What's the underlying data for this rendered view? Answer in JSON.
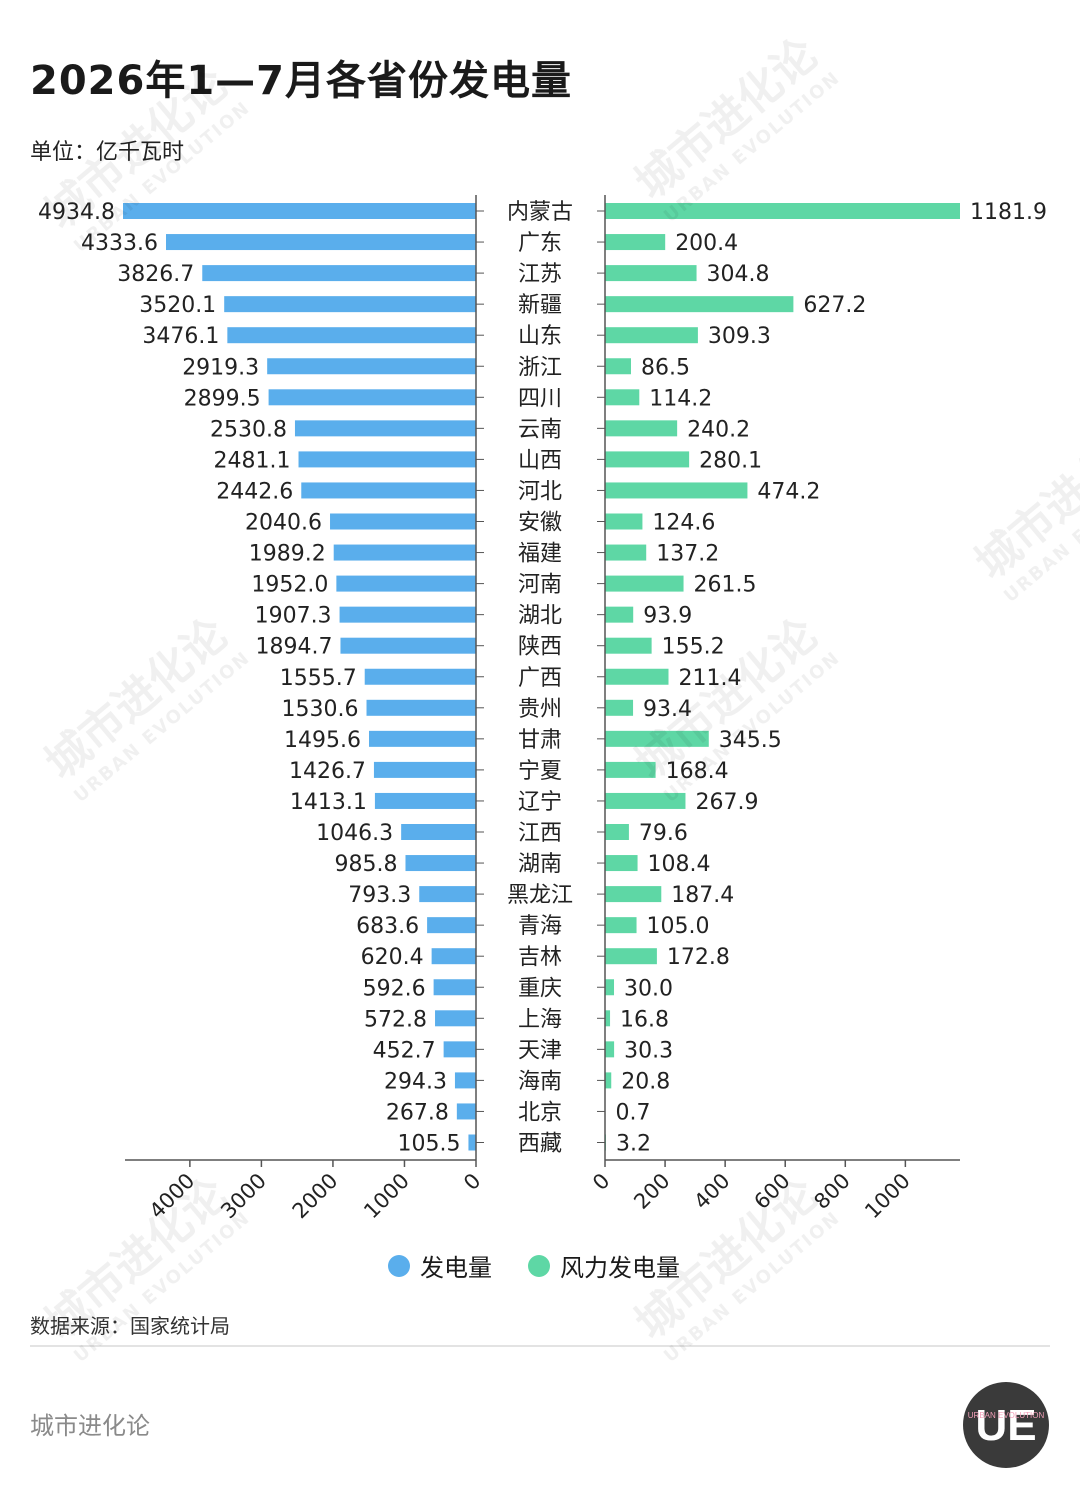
{
  "header": {
    "title": "2026年1—7月各省份发电量",
    "unit": "单位：亿千瓦时"
  },
  "legend": {
    "left_label": "发电量",
    "right_label": "风力发电量",
    "left_color": "#5aaeec",
    "right_color": "#5ed7a5"
  },
  "footer": {
    "source": "数据来源：国家统计局",
    "brand": "城市进化论",
    "logo_text": "URBAN EVOLUTION"
  },
  "watermark": {
    "text": "城市进化论",
    "sub": "URBAN EVOLUTION"
  },
  "chart_data": {
    "type": "bar",
    "orientation": "horizontal-butterfly",
    "categories": [
      "内蒙古",
      "广东",
      "江苏",
      "新疆",
      "山东",
      "浙江",
      "四川",
      "云南",
      "山西",
      "河北",
      "安徽",
      "福建",
      "河南",
      "湖北",
      "陕西",
      "广西",
      "贵州",
      "甘肃",
      "宁夏",
      "辽宁",
      "江西",
      "湖南",
      "黑龙江",
      "青海",
      "吉林",
      "重庆",
      "上海",
      "天津",
      "海南",
      "北京",
      "西藏"
    ],
    "series": [
      {
        "name": "发电量",
        "values": [
          4934.8,
          4333.6,
          3826.7,
          3520.1,
          3476.1,
          2919.3,
          2899.5,
          2530.8,
          2481.1,
          2442.6,
          2040.6,
          1989.2,
          1952.0,
          1907.3,
          1894.7,
          1555.7,
          1530.6,
          1495.6,
          1426.7,
          1413.1,
          1046.3,
          985.8,
          793.3,
          683.6,
          620.4,
          592.6,
          572.8,
          452.7,
          294.3,
          267.8,
          105.5
        ],
        "labels": [
          "4934.8",
          "4333.6",
          "3826.7",
          "3520.1",
          "3476.1",
          "2919.3",
          "2899.5",
          "2530.8",
          "2481.1",
          "2442.6",
          "2040.6",
          "1989.2",
          "1952.0",
          "1907.3",
          "1894.7",
          "1555.7",
          "1530.6",
          "1495.6",
          "1426.7",
          "1413.1",
          "1046.3",
          "985.8",
          "793.3",
          "683.6",
          "620.4",
          "592.6",
          "572.8",
          "452.7",
          "294.3",
          "267.8",
          "105.5"
        ],
        "axis_ticks": [
          4000,
          3000,
          2000,
          1000,
          0
        ],
        "range": [
          0,
          5000
        ]
      },
      {
        "name": "风力发电量",
        "values": [
          1181.9,
          200.4,
          304.8,
          627.2,
          309.3,
          86.5,
          114.2,
          240.2,
          280.1,
          474.2,
          124.6,
          137.2,
          261.5,
          93.9,
          155.2,
          211.4,
          93.4,
          345.5,
          168.4,
          267.9,
          79.6,
          108.4,
          187.4,
          105.0,
          172.8,
          30.0,
          16.8,
          30.3,
          20.8,
          0.7,
          3.2
        ],
        "labels": [
          "1181.9",
          "200.4",
          "304.8",
          "627.2",
          "309.3",
          "86.5",
          "114.2",
          "240.2",
          "280.1",
          "474.2",
          "124.6",
          "137.2",
          "261.5",
          "93.9",
          "155.2",
          "211.4",
          "93.4",
          "345.5",
          "168.4",
          "267.9",
          "79.6",
          "108.4",
          "187.4",
          "105.0",
          "172.8",
          "30.0",
          "16.8",
          "30.3",
          "20.8",
          "0.7",
          "3.2"
        ],
        "axis_ticks": [
          0,
          200,
          400,
          600,
          800,
          1000
        ],
        "range": [
          0,
          1180
        ]
      }
    ]
  }
}
